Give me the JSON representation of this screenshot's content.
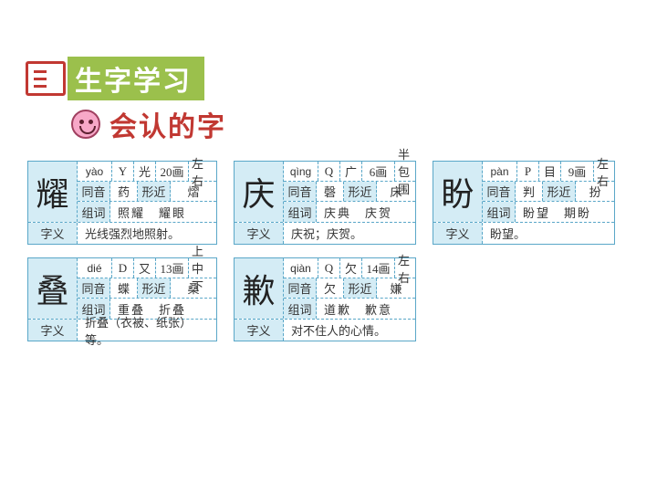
{
  "header": {
    "title": "生字学习"
  },
  "subtitle": {
    "text": "会认的字"
  },
  "labels": {
    "tongyin": "同音",
    "xingjin": "形近",
    "zuci": "组词",
    "ziyi": "字义"
  },
  "cards": [
    {
      "char": "耀",
      "pinyin": "yào",
      "cap": "Y",
      "rad": "光",
      "strokes": "20画",
      "struct": "左右",
      "ty": "药",
      "xj": "熠",
      "zc": "照耀　耀眼",
      "zy": "光线强烈地照射。"
    },
    {
      "char": "庆",
      "pinyin": "qìng",
      "cap": "Q",
      "rad": "广",
      "strokes": "6画",
      "struct": "半包围",
      "ty": "磬",
      "xj": "床",
      "zc": "庆典　庆贺",
      "zy": "庆祝；庆贺。"
    },
    {
      "char": "盼",
      "pinyin": "pàn",
      "cap": "P",
      "rad": "目",
      "strokes": "9画",
      "struct": "左右",
      "ty": "判",
      "xj": "扮",
      "zc": "盼望　期盼",
      "zy": "盼望。"
    },
    {
      "char": "叠",
      "pinyin": "dié",
      "cap": "D",
      "rad": "又",
      "strokes": "13画",
      "struct": "上中下",
      "ty": "蝶",
      "xj": "桑",
      "zc": "重叠　折叠",
      "zy": "折叠（衣被、纸张）等。"
    },
    {
      "char": "歉",
      "pinyin": "qiàn",
      "cap": "Q",
      "rad": "欠",
      "strokes": "14画",
      "struct": "左右",
      "ty": "欠",
      "xj": "嫌",
      "zc": "道歉　歉意",
      "zy": "对不住人的心情。"
    }
  ]
}
